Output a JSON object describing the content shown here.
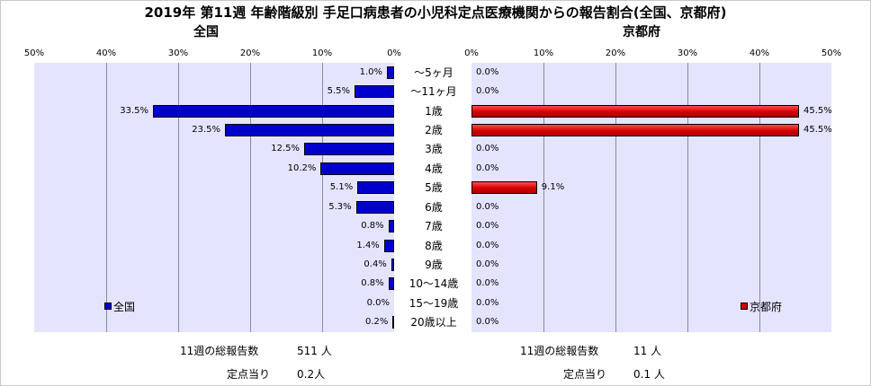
{
  "title": "2019年 第11週 年齢階級別 手足口病患者の小児科定点医療機関からの報告割合(全国、京都府)",
  "chart_data": [
    {
      "type": "bar",
      "orientation": "horizontal",
      "direction": "right-to-left",
      "title": "全国",
      "legend": "全国",
      "legend_position": "bottom-left",
      "xlim": [
        0,
        50
      ],
      "ticks": [
        "0%",
        "10%",
        "20%",
        "30%",
        "40%",
        "50%"
      ],
      "categories": [
        "～5ヶ月",
        "～11ヶ月",
        "1歳",
        "2歳",
        "3歳",
        "4歳",
        "5歳",
        "6歳",
        "7歳",
        "8歳",
        "9歳",
        "10～14歳",
        "15～19歳",
        "20歳以上"
      ],
      "values": [
        1.0,
        5.5,
        33.5,
        23.5,
        12.5,
        10.2,
        5.1,
        5.3,
        0.8,
        1.4,
        0.4,
        0.8,
        0.0,
        0.2
      ],
      "labels": [
        "1.0%",
        "5.5%",
        "33.5%",
        "23.5%",
        "12.5%",
        "10.2%",
        "5.1%",
        "5.3%",
        "0.8%",
        "1.4%",
        "0.4%",
        "0.8%",
        "0.0%",
        "0.2%"
      ],
      "color": "#0000cc",
      "grid": true
    },
    {
      "type": "bar",
      "orientation": "horizontal",
      "direction": "left-to-right",
      "title": "京都府",
      "legend": "京都府",
      "legend_position": "bottom-right",
      "xlim": [
        0,
        50
      ],
      "ticks": [
        "0%",
        "10%",
        "20%",
        "30%",
        "40%",
        "50%"
      ],
      "categories": [
        "～5ヶ月",
        "～11ヶ月",
        "1歳",
        "2歳",
        "3歳",
        "4歳",
        "5歳",
        "6歳",
        "7歳",
        "8歳",
        "9歳",
        "10～14歳",
        "15～19歳",
        "20歳以上"
      ],
      "values": [
        0.0,
        0.0,
        45.5,
        45.5,
        0.0,
        0.0,
        9.1,
        0.0,
        0.0,
        0.0,
        0.0,
        0.0,
        0.0,
        0.0
      ],
      "labels": [
        "0.0%",
        "0.0%",
        "45.5%",
        "45.5%",
        "0.0%",
        "0.0%",
        "9.1%",
        "0.0%",
        "0.0%",
        "0.0%",
        "0.0%",
        "0.0%",
        "0.0%",
        "0.0%"
      ],
      "color": "#cc0000",
      "grid": true
    }
  ],
  "footer": {
    "national": {
      "total_label": "11週の総報告数",
      "total_value": "511 人",
      "per_label": "定点当り",
      "per_value": "0.2人"
    },
    "kyoto": {
      "total_label": "11週の総報告数",
      "total_value": "11 人",
      "per_label": "定点当り",
      "per_value": "0.1 人"
    }
  }
}
